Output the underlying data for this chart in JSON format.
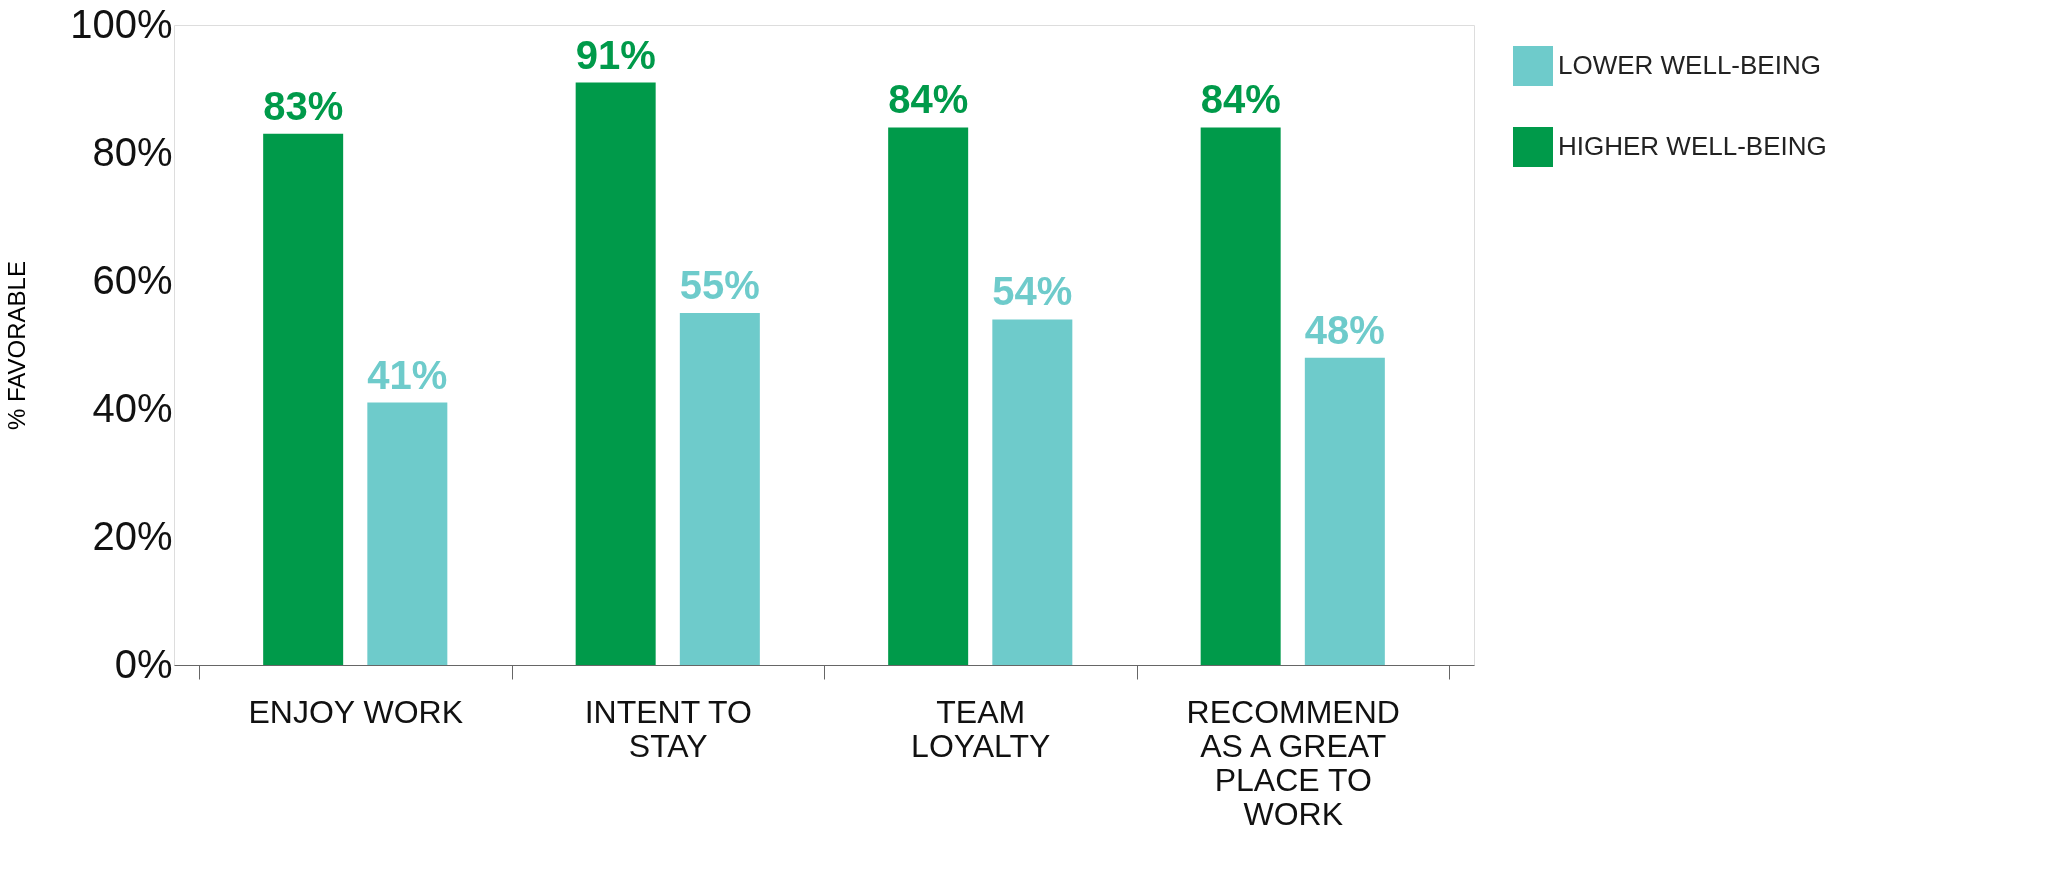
{
  "chart_data": {
    "type": "bar",
    "ylabel": "% FAVORABLE",
    "categories": [
      "ENJOY WORK",
      "INTENT TO STAY",
      "TEAM LOYALTY",
      "RECOMMEND AS A GREAT PLACE TO WORK"
    ],
    "series": [
      {
        "name": "LOWER WELL-BEING",
        "color": "#6ecbcb",
        "values": [
          41,
          55,
          54,
          48
        ],
        "value_labels": [
          "41%",
          "55%",
          "54%",
          "48%"
        ]
      },
      {
        "name": "HIGHER WELL-BEING",
        "color": "#009a4a",
        "values": [
          83,
          91,
          84,
          84
        ],
        "value_labels": [
          "83%",
          "91%",
          "84%",
          "84%"
        ]
      }
    ],
    "ylim": [
      0,
      100
    ],
    "yticks": [
      {
        "value": 0,
        "label": "0%"
      },
      {
        "value": 20,
        "label": "20%"
      },
      {
        "value": 40,
        "label": "40%"
      },
      {
        "value": 60,
        "label": "60%"
      },
      {
        "value": 80,
        "label": "80%"
      },
      {
        "value": 100,
        "label": "100%"
      }
    ],
    "grid": false,
    "legend": "right"
  }
}
